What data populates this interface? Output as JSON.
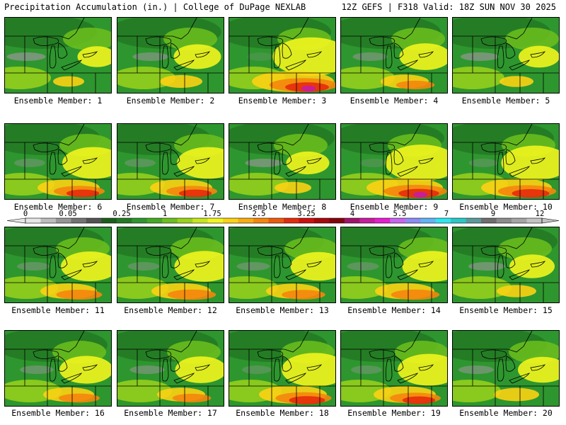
{
  "header": {
    "title": "Precipitation Accumulation (in.) | College of DuPage NEXLAB",
    "run_info": "12Z GEFS | F318 Valid: 18Z SUN NOV 30 2025"
  },
  "member_label_prefix": "Ensemble Member: ",
  "members": [
    {
      "id": "1",
      "wet": 0.05
    },
    {
      "id": "2",
      "wet": 0.25
    },
    {
      "id": "3",
      "wet": 0.95
    },
    {
      "id": "4",
      "wet": 0.35
    },
    {
      "id": "5",
      "wet": 0.1
    },
    {
      "id": "6",
      "wet": 0.6
    },
    {
      "id": "7",
      "wet": 0.6
    },
    {
      "id": "8",
      "wet": 0.15
    },
    {
      "id": "9",
      "wet": 0.85
    },
    {
      "id": "10",
      "wet": 0.75
    },
    {
      "id": "11",
      "wet": 0.5
    },
    {
      "id": "12",
      "wet": 0.55
    },
    {
      "id": "13",
      "wet": 0.45
    },
    {
      "id": "14",
      "wet": 0.55
    },
    {
      "id": "15",
      "wet": 0.2
    },
    {
      "id": "16",
      "wet": 0.4
    },
    {
      "id": "17",
      "wet": 0.35
    },
    {
      "id": "18",
      "wet": 0.7
    },
    {
      "id": "19",
      "wet": 0.6
    },
    {
      "id": "20",
      "wet": 0.3
    }
  ],
  "legend": {
    "tick_labels": [
      "0",
      "0.05",
      "0.25",
      "1",
      "1.75",
      "2.5",
      "3.25",
      "4",
      "5.5",
      "7",
      "9",
      "12"
    ],
    "colors": [
      "#e6e6e6",
      "#bdbdbd",
      "#969696",
      "#737373",
      "#535353",
      "#1a5e1a",
      "#237a23",
      "#2e962e",
      "#44aa22",
      "#6cbf1c",
      "#9ad21a",
      "#c8e61c",
      "#f2f51e",
      "#fcd213",
      "#f9ad10",
      "#f5860c",
      "#ee5a0a",
      "#e52b0c",
      "#cf0f0f",
      "#a8080c",
      "#84040c",
      "#a0146e",
      "#c81ca0",
      "#e61ed2",
      "#c864f0",
      "#8c8cf5",
      "#5fb4f5",
      "#2ee6f0",
      "#2ac8c8",
      "#5a9a9a",
      "#6e6e6e",
      "#8c8c8c",
      "#a5a5a5",
      "#c3c3c3"
    ]
  }
}
